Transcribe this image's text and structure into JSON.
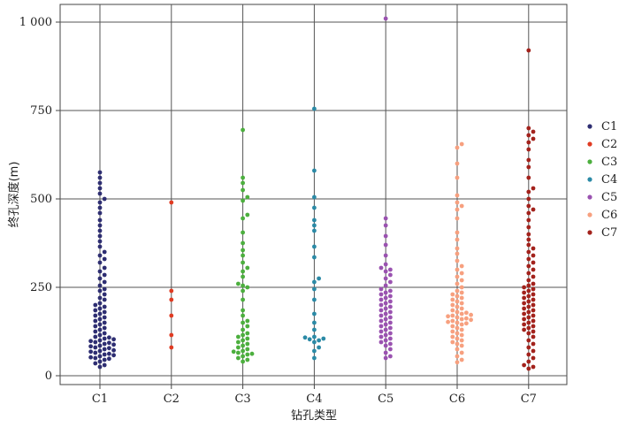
{
  "chart_data": {
    "type": "scatter",
    "subtype": "swarm",
    "title": "",
    "xlabel": "钻孔类型",
    "ylabel": "终孔深度(m)",
    "ylim": [
      0,
      1000
    ],
    "yticks": [
      0,
      250,
      500,
      750,
      1000
    ],
    "ytick_labels": [
      "0",
      "250",
      "500",
      "750",
      "1 000"
    ],
    "categories": [
      "C1",
      "C2",
      "C3",
      "C4",
      "C5",
      "C6",
      "C7"
    ],
    "grid": true,
    "legend": {
      "position": "right",
      "entries": [
        "C1",
        "C2",
        "C3",
        "C4",
        "C5",
        "C6",
        "C7"
      ]
    },
    "colors": {
      "C1": "#2e2e72",
      "C2": "#e03b22",
      "C3": "#4caf3e",
      "C4": "#2b8aa6",
      "C5": "#9a52b0",
      "C6": "#f7a07f",
      "C7": "#a3221c"
    },
    "series": [
      {
        "category": "C1",
        "values": [
          575,
          560,
          545,
          530,
          515,
          500,
          490,
          475,
          460,
          440,
          425,
          410,
          395,
          380,
          365,
          350,
          340,
          330,
          320,
          305,
          295,
          285,
          275,
          265,
          255,
          245,
          240,
          230,
          220,
          215,
          205,
          200,
          195,
          190,
          185,
          180,
          175,
          170,
          165,
          160,
          155,
          150,
          145,
          140,
          135,
          130,
          125,
          120,
          115,
          110,
          108,
          105,
          103,
          100,
          98,
          95,
          93,
          90,
          88,
          85,
          83,
          80,
          78,
          75,
          72,
          70,
          68,
          65,
          62,
          60,
          58,
          55,
          52,
          50,
          48,
          45,
          40,
          35,
          30,
          25
        ]
      },
      {
        "category": "C2",
        "values": [
          490,
          240,
          215,
          170,
          115,
          80
        ]
      },
      {
        "category": "C3",
        "values": [
          695,
          560,
          545,
          525,
          505,
          495,
          455,
          445,
          405,
          375,
          355,
          340,
          320,
          305,
          295,
          280,
          260,
          255,
          250,
          240,
          215,
          185,
          170,
          155,
          150,
          140,
          130,
          120,
          115,
          110,
          105,
          100,
          95,
          90,
          85,
          80,
          75,
          70,
          68,
          65,
          62,
          60,
          55,
          50,
          45,
          40
        ]
      },
      {
        "category": "C4",
        "values": [
          755,
          580,
          505,
          475,
          440,
          425,
          410,
          365,
          335,
          275,
          265,
          245,
          215,
          175,
          150,
          130,
          110,
          108,
          105,
          103,
          100,
          95,
          80,
          70,
          50
        ]
      },
      {
        "category": "C5",
        "values": [
          1010,
          445,
          425,
          395,
          370,
          340,
          315,
          305,
          300,
          295,
          285,
          275,
          265,
          255,
          245,
          240,
          235,
          230,
          225,
          220,
          215,
          210,
          205,
          200,
          195,
          190,
          185,
          180,
          175,
          170,
          165,
          160,
          155,
          150,
          145,
          140,
          135,
          130,
          125,
          120,
          115,
          110,
          105,
          100,
          95,
          90,
          85,
          75,
          65,
          55,
          50
        ]
      },
      {
        "category": "C6",
        "values": [
          655,
          645,
          600,
          560,
          510,
          490,
          480,
          470,
          445,
          405,
          385,
          360,
          345,
          325,
          310,
          300,
          290,
          280,
          270,
          260,
          250,
          240,
          235,
          230,
          225,
          220,
          215,
          210,
          205,
          200,
          195,
          190,
          185,
          180,
          178,
          175,
          172,
          170,
          168,
          165,
          162,
          160,
          158,
          155,
          152,
          150,
          148,
          145,
          140,
          135,
          130,
          125,
          120,
          115,
          110,
          105,
          100,
          95,
          90,
          85,
          75,
          65,
          55,
          45,
          38
        ]
      },
      {
        "category": "C7",
        "values": [
          920,
          700,
          690,
          680,
          670,
          660,
          640,
          610,
          590,
          560,
          530,
          520,
          500,
          480,
          470,
          460,
          440,
          420,
          400,
          385,
          370,
          360,
          350,
          340,
          330,
          320,
          310,
          300,
          290,
          280,
          270,
          260,
          255,
          250,
          245,
          240,
          235,
          230,
          225,
          220,
          215,
          210,
          205,
          200,
          195,
          190,
          185,
          180,
          175,
          170,
          165,
          160,
          155,
          150,
          145,
          140,
          135,
          130,
          125,
          120,
          110,
          100,
          90,
          80,
          70,
          60,
          50,
          40,
          30,
          25,
          20
        ]
      }
    ]
  }
}
